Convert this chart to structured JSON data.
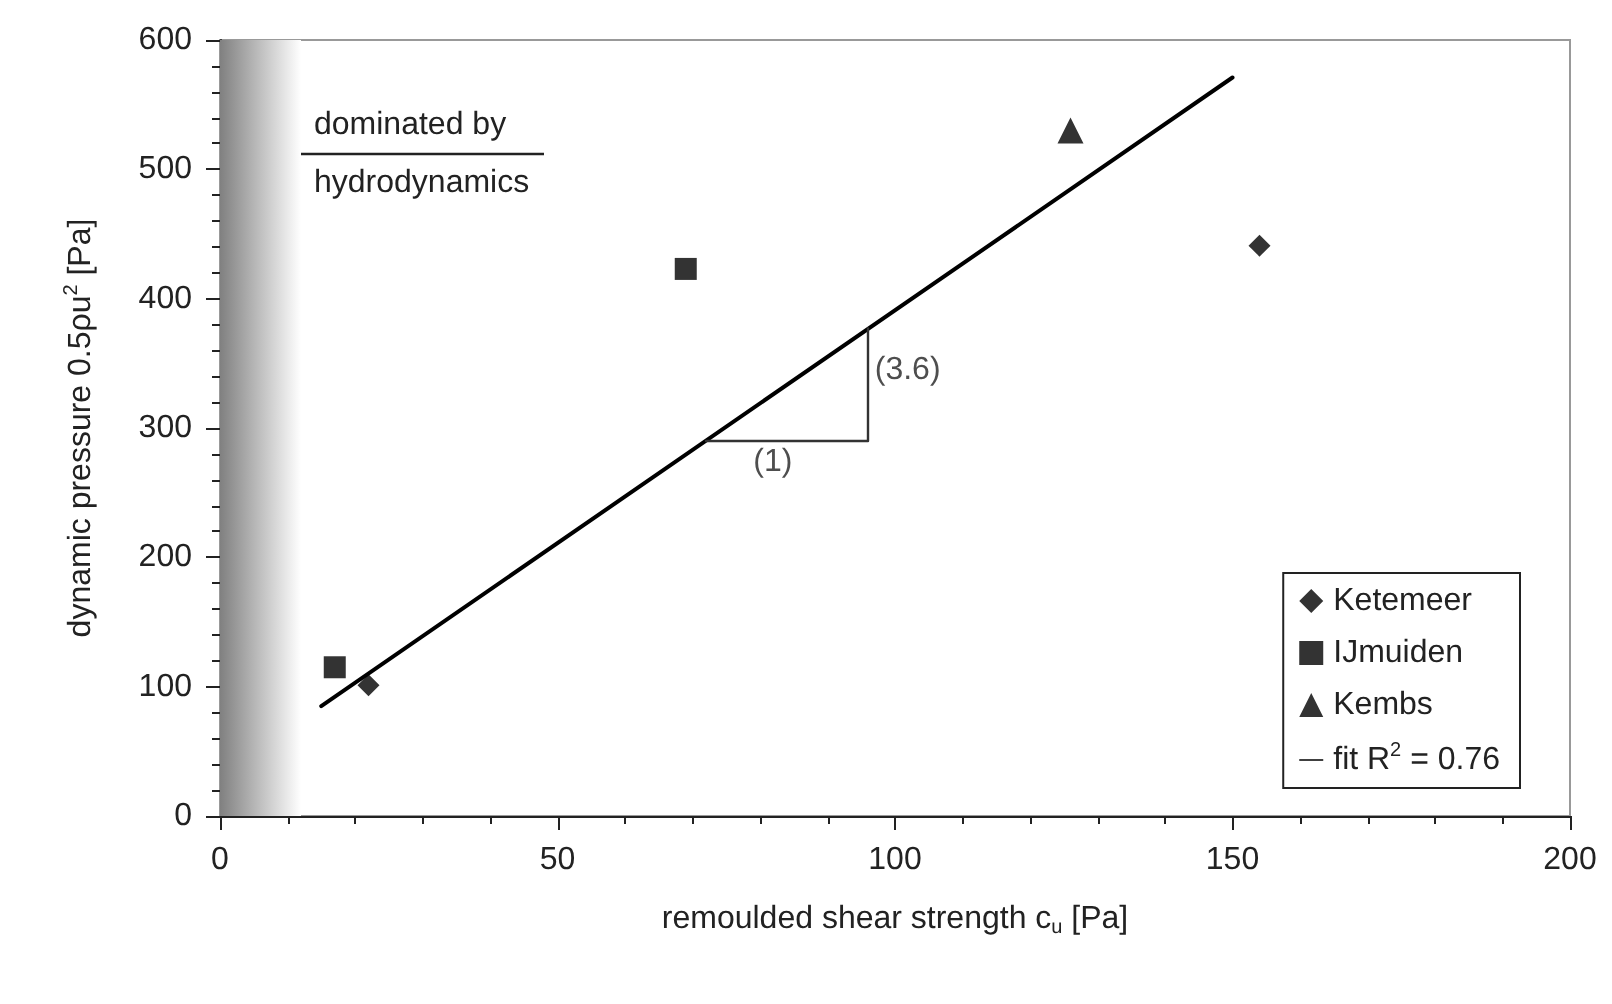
{
  "chart_data": {
    "type": "scatter",
    "xlabel": "remoulded shear strength c$_{u}$ [Pa]",
    "ylabel": "dynamic pressure 0.5ρu$^{2}$ [Pa]",
    "xlim": [
      0,
      200
    ],
    "xticks": [
      0,
      50,
      100,
      150,
      200
    ],
    "ylim": [
      0,
      600
    ],
    "yticks": [
      0,
      100,
      200,
      300,
      400,
      500,
      600
    ],
    "grid": false,
    "legend": "bottom right",
    "series": [
      {
        "name": "Ketemeer",
        "color": "#000000",
        "marker": "diamond",
        "x": [
          22,
          154
        ],
        "values": [
          101,
          441
        ]
      },
      {
        "name": "IJmuiden",
        "color": "#000000",
        "marker": "square",
        "x": [
          17,
          69
        ],
        "values": [
          115,
          423
        ]
      },
      {
        "name": "Kembs",
        "color": "#000000",
        "marker": "triangle",
        "x": [
          126
        ],
        "values": [
          530
        ]
      },
      {
        "name": "fit R$^{2}$ = 0.76",
        "type": "line",
        "color": "#000000",
        "marker": "none",
        "x": [
          15,
          150
        ],
        "values": [
          85,
          571
        ]
      },
      {
        "type": "line",
        "color": "#333333",
        "marker": "none",
        "x": [
          72,
          96,
          96
        ],
        "values": [
          290,
          290,
          377
        ]
      }
    ],
    "bands": [
      {
        "axis": "x",
        "from": 0,
        "to": 12,
        "label": "dominated by hydrodynamics",
        "color": "#808080"
      }
    ],
    "annotations": [
      {
        "text": "(1)",
        "x": 79,
        "y": 286
      },
      {
        "text": "(3.6)",
        "x": 97,
        "y": 357
      }
    ]
  }
}
